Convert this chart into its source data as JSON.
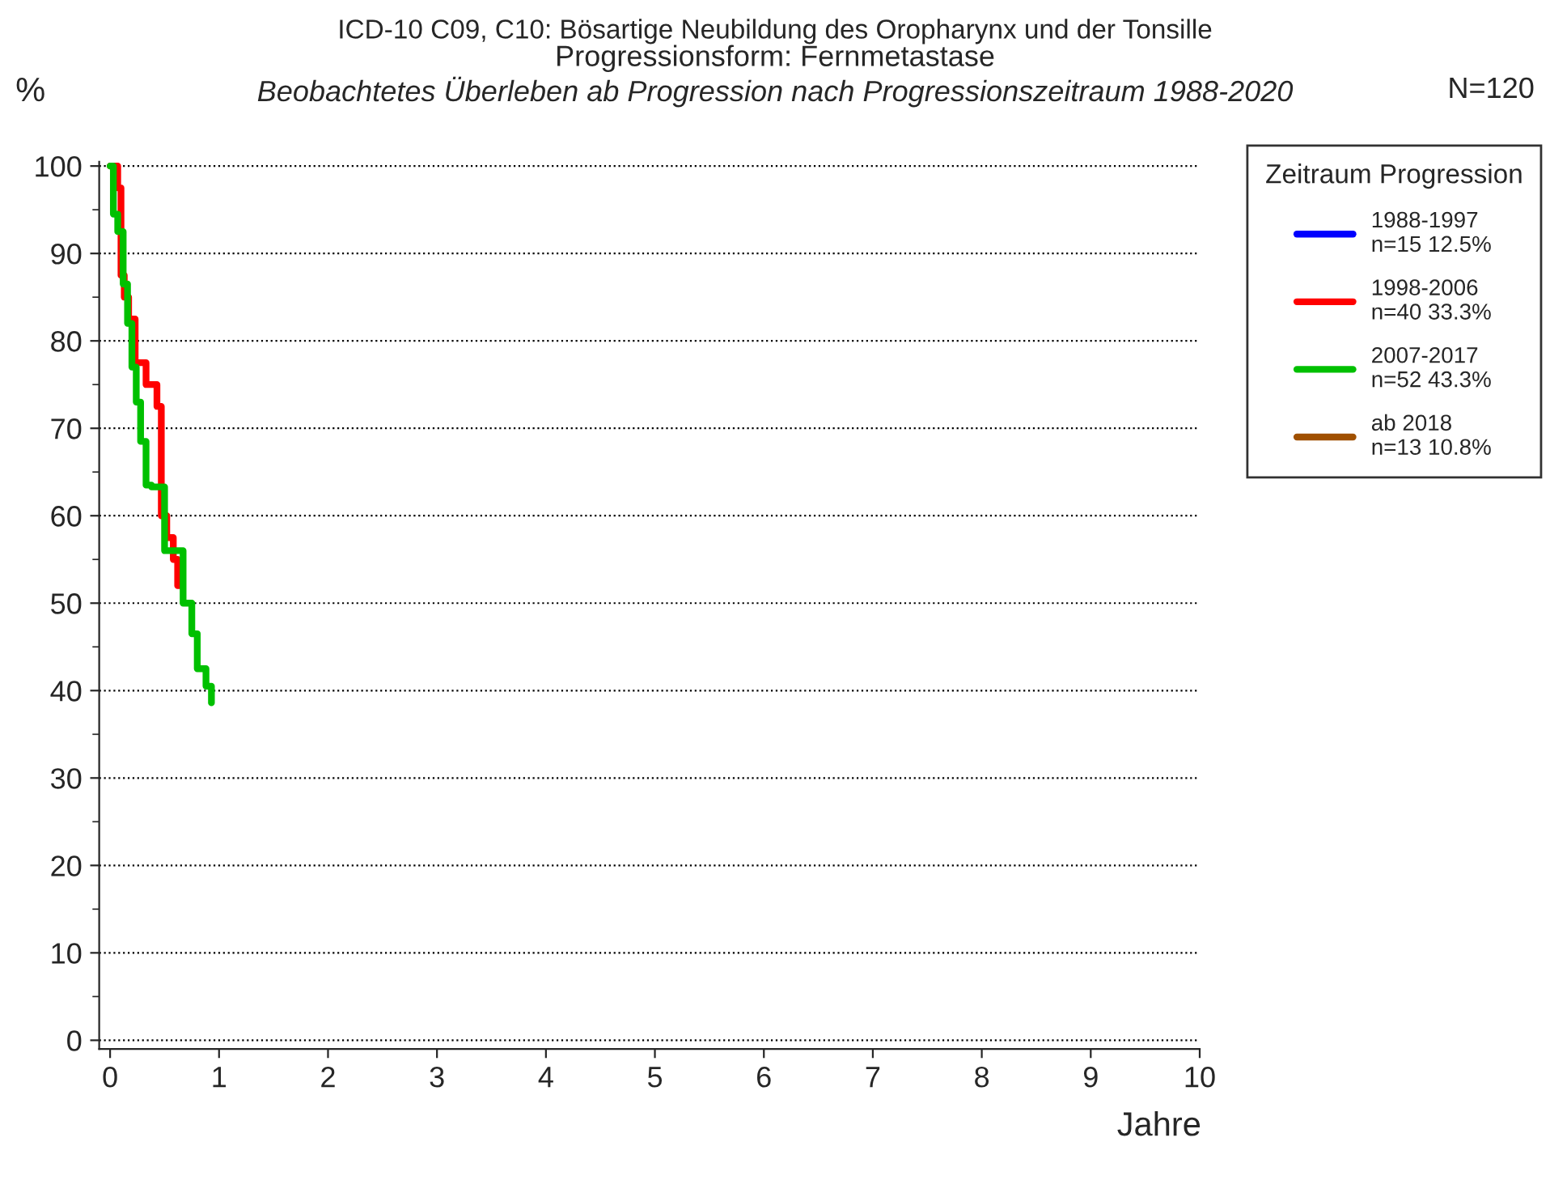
{
  "chart_data": {
    "type": "step",
    "title": "ICD-10 C09, C10: Bösartige Neubildung des Oropharynx und der Tonsille",
    "subtitle": "Progressionsform: Fernmetastase",
    "annotations": [
      "Beobachtetes Überleben ab Progression nach Progressionszeitraum 1988-2020",
      "N=120"
    ],
    "xlabel": "Jahre",
    "ylabel": "%",
    "legend_title": "Zeitraum Progression",
    "xlim": [
      -0.1,
      10
    ],
    "ylim": [
      -1,
      100.5
    ],
    "xticks": [
      0,
      1,
      2,
      3,
      4,
      5,
      6,
      7,
      8,
      9,
      10
    ],
    "yticks": [
      0,
      10,
      20,
      30,
      40,
      50,
      60,
      70,
      80,
      90,
      100
    ],
    "grid": "y",
    "legend": "top right",
    "line_style": "solid",
    "series": [
      {
        "name": "1988-1997\nn=15 12.5%",
        "color": "#0000ff"
      },
      {
        "name": "1998-2006\nn=40 33.3%",
        "color": "#ff0000",
        "x": [
          0,
          0.07,
          0.1,
          0.13,
          0.17,
          0.23,
          0.33,
          0.43,
          0.47,
          0.52,
          0.58,
          0.62,
          0.64
        ],
        "values": [
          100,
          97.5,
          87.5,
          85,
          82.5,
          77.5,
          75,
          72.5,
          60,
          57.5,
          55,
          52,
          52
        ]
      },
      {
        "name": "2007-2017\nn=52 43.3%",
        "color": "#00c000",
        "x": [
          0,
          0.03,
          0.07,
          0.12,
          0.16,
          0.2,
          0.24,
          0.28,
          0.33,
          0.38,
          0.5,
          0.67,
          0.75,
          0.8,
          0.88,
          0.93
        ],
        "values": [
          100,
          94.5,
          92.5,
          86.5,
          82,
          77,
          73,
          68.5,
          63.5,
          63.3,
          56,
          50,
          46.5,
          42.5,
          40.5,
          38.6
        ]
      },
      {
        "name": "ab 2018\nn=13 10.8%",
        "color": "#a05000"
      }
    ]
  }
}
